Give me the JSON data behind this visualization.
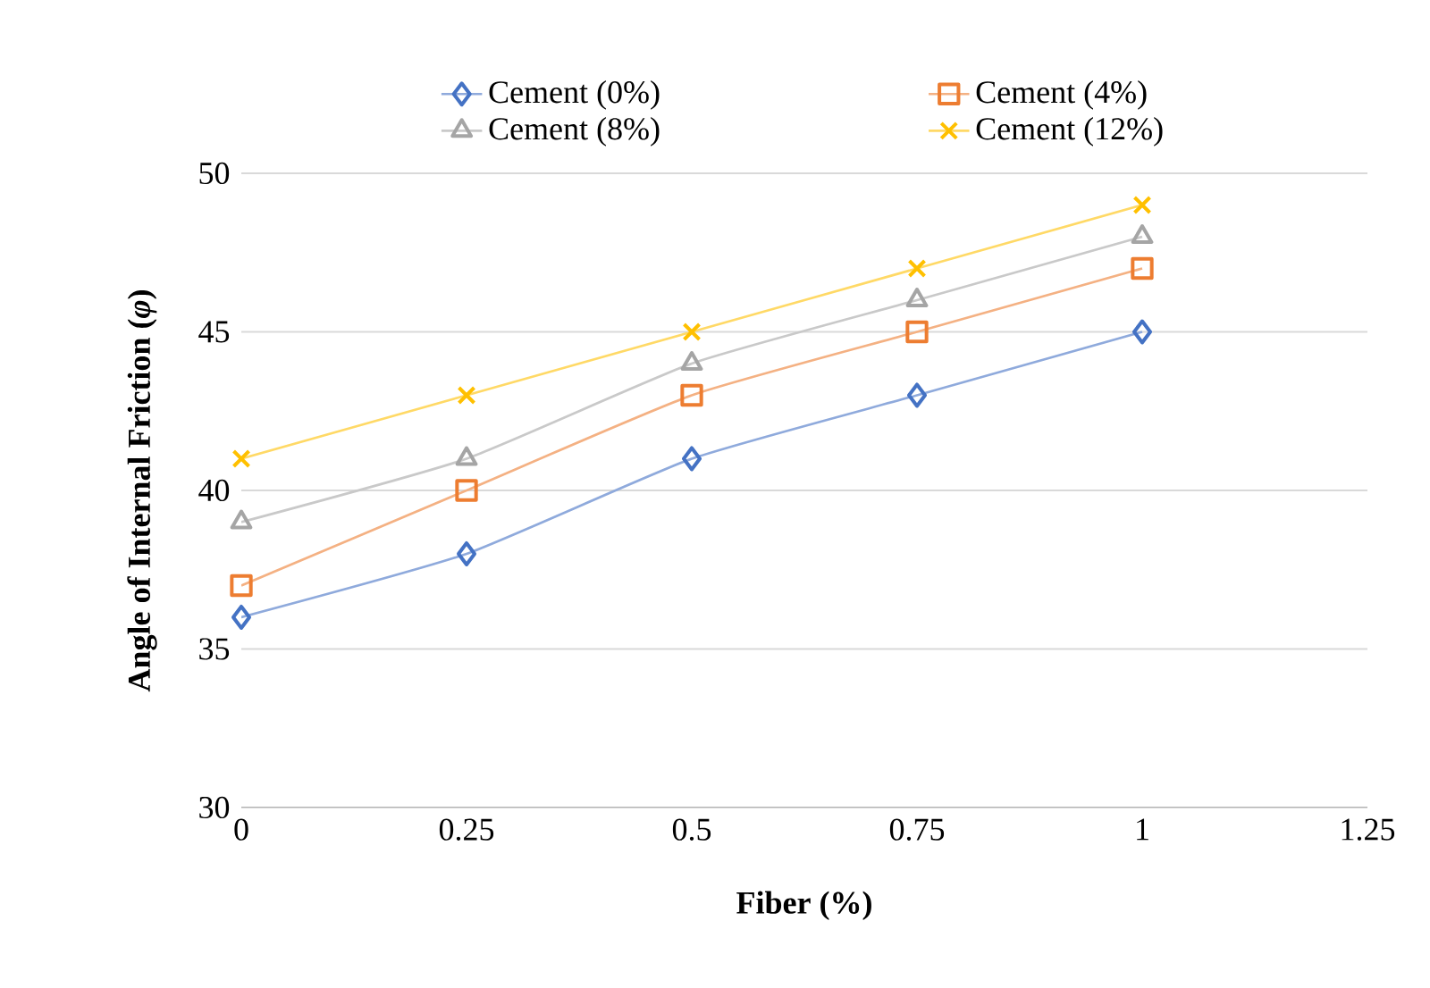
{
  "chart_data": {
    "type": "line",
    "xlabel": "Fiber (%)",
    "ylabel": "Angle of Internal Friction (*φ*)",
    "x": [
      0,
      0.25,
      0.5,
      0.75,
      1
    ],
    "xlim": [
      0,
      1.25
    ],
    "xticks": [
      0,
      0.25,
      0.5,
      0.75,
      1,
      1.25
    ],
    "ylim": [
      30,
      50
    ],
    "yticks": [
      30,
      35,
      40,
      45,
      50
    ],
    "grid": "y",
    "legend": "top",
    "series": [
      {
        "name": "Cement (0%)",
        "color": "#4472c4",
        "marker": "diamond",
        "values": [
          36,
          38,
          41,
          43,
          45
        ]
      },
      {
        "name": "Cement (4%)",
        "color": "#ed7d31",
        "marker": "square",
        "values": [
          37,
          40,
          43,
          45,
          47
        ]
      },
      {
        "name": "Cement (8%)",
        "color": "#a5a5a5",
        "marker": "triangle",
        "values": [
          39,
          41,
          44,
          46,
          48
        ]
      },
      {
        "name": "Cement (12%)",
        "color": "#ffc000",
        "marker": "cross",
        "values": [
          41,
          43,
          45,
          47,
          49
        ]
      }
    ]
  }
}
